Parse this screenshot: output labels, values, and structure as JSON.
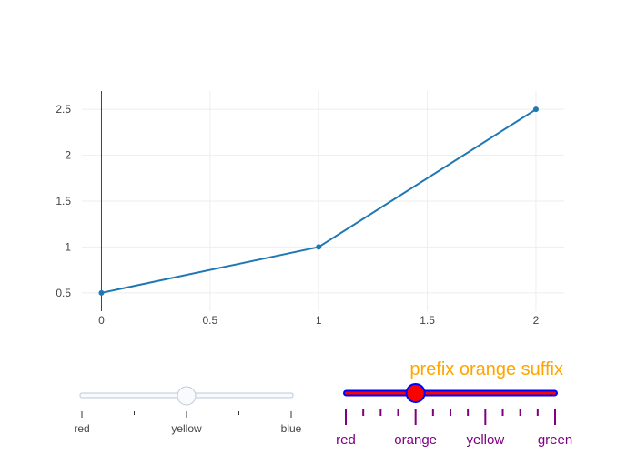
{
  "chart_data": {
    "type": "line",
    "x": [
      0,
      1,
      2
    ],
    "y": [
      0.5,
      1,
      2.5
    ],
    "xlim": [
      -0.09,
      2.13
    ],
    "ylim": [
      0.3,
      2.7
    ],
    "x_ticks": [
      0,
      0.5,
      1,
      1.5,
      2
    ],
    "x_tick_labels": [
      "0",
      "0.5",
      "1",
      "1.5",
      "2"
    ],
    "y_ticks": [
      0.5,
      1,
      1.5,
      2,
      2.5
    ],
    "y_tick_labels": [
      "0.5",
      "1",
      "1.5",
      "2",
      "2.5"
    ],
    "grid": true,
    "line_color": "#1f77b4",
    "axis_line_color": "#444444",
    "grid_color": "#eeeeee"
  },
  "slider_left": {
    "steps": [
      "red",
      "yellow",
      "blue"
    ],
    "active": 1,
    "track_color": "#f8fafc",
    "border_color": "#bec8d9",
    "tick_color": "#333333"
  },
  "slider_right": {
    "current_value": {
      "prefix": "prefix ",
      "value": "orange",
      "suffix": " suffix",
      "color": "#ffa500"
    },
    "steps": [
      "red",
      "orange",
      "yellow",
      "green"
    ],
    "active": 1,
    "bg_color": "#ff0000",
    "border_color": "#0000ff",
    "tick_color": "#800080",
    "label_color": "#800080"
  }
}
